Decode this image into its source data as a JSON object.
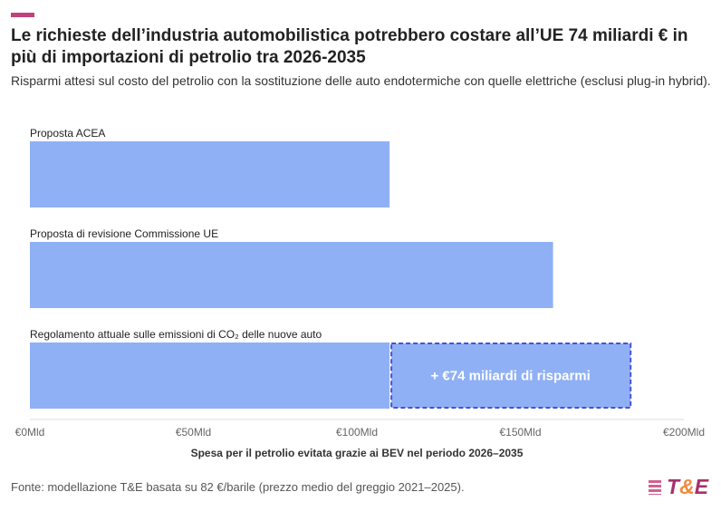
{
  "header": {
    "title": "Le richieste dell’industria automobilistica potrebbero costare all’UE 74 miliardi € in più di importazioni di petrolio tra 2026-2035",
    "subtitle": "Risparmi attesi sul costo del petrolio con la sostituzione delle auto endotermiche con quelle elettriche (esclusi plug-in hybrid)."
  },
  "chart_data": {
    "type": "bar",
    "orientation": "horizontal",
    "categories": [
      "Proposta ACEA",
      "Proposta di revisione Commissione UE",
      "Regolamento attuale sulle emissioni di CO₂ delle nuove auto"
    ],
    "values": [
      110,
      160,
      184
    ],
    "highlight": {
      "category_index": 2,
      "from": 110,
      "to": 184,
      "label": "+ €74 miliardi di risparmi"
    },
    "xlabel": "Spesa per il petrolio evitata grazie ai BEV nel periodo 2026–2035",
    "xlim": [
      0,
      200
    ],
    "xticks": [
      0,
      50,
      100,
      150,
      200
    ],
    "xtick_labels": [
      "€0Mld",
      "€50Mld",
      "€100Mld",
      "€150Mld",
      "€200Mld"
    ],
    "unit": "miliardi €",
    "colors": {
      "bar": "#8fb0f5",
      "highlight_border": "#4a50d8",
      "accent": "#c0427a"
    }
  },
  "footer": {
    "source": "Fonte: modellazione T&E basata su 82 €/barile (prezzo medio del greggio 2021–2025).",
    "logo_text": "T&E"
  }
}
